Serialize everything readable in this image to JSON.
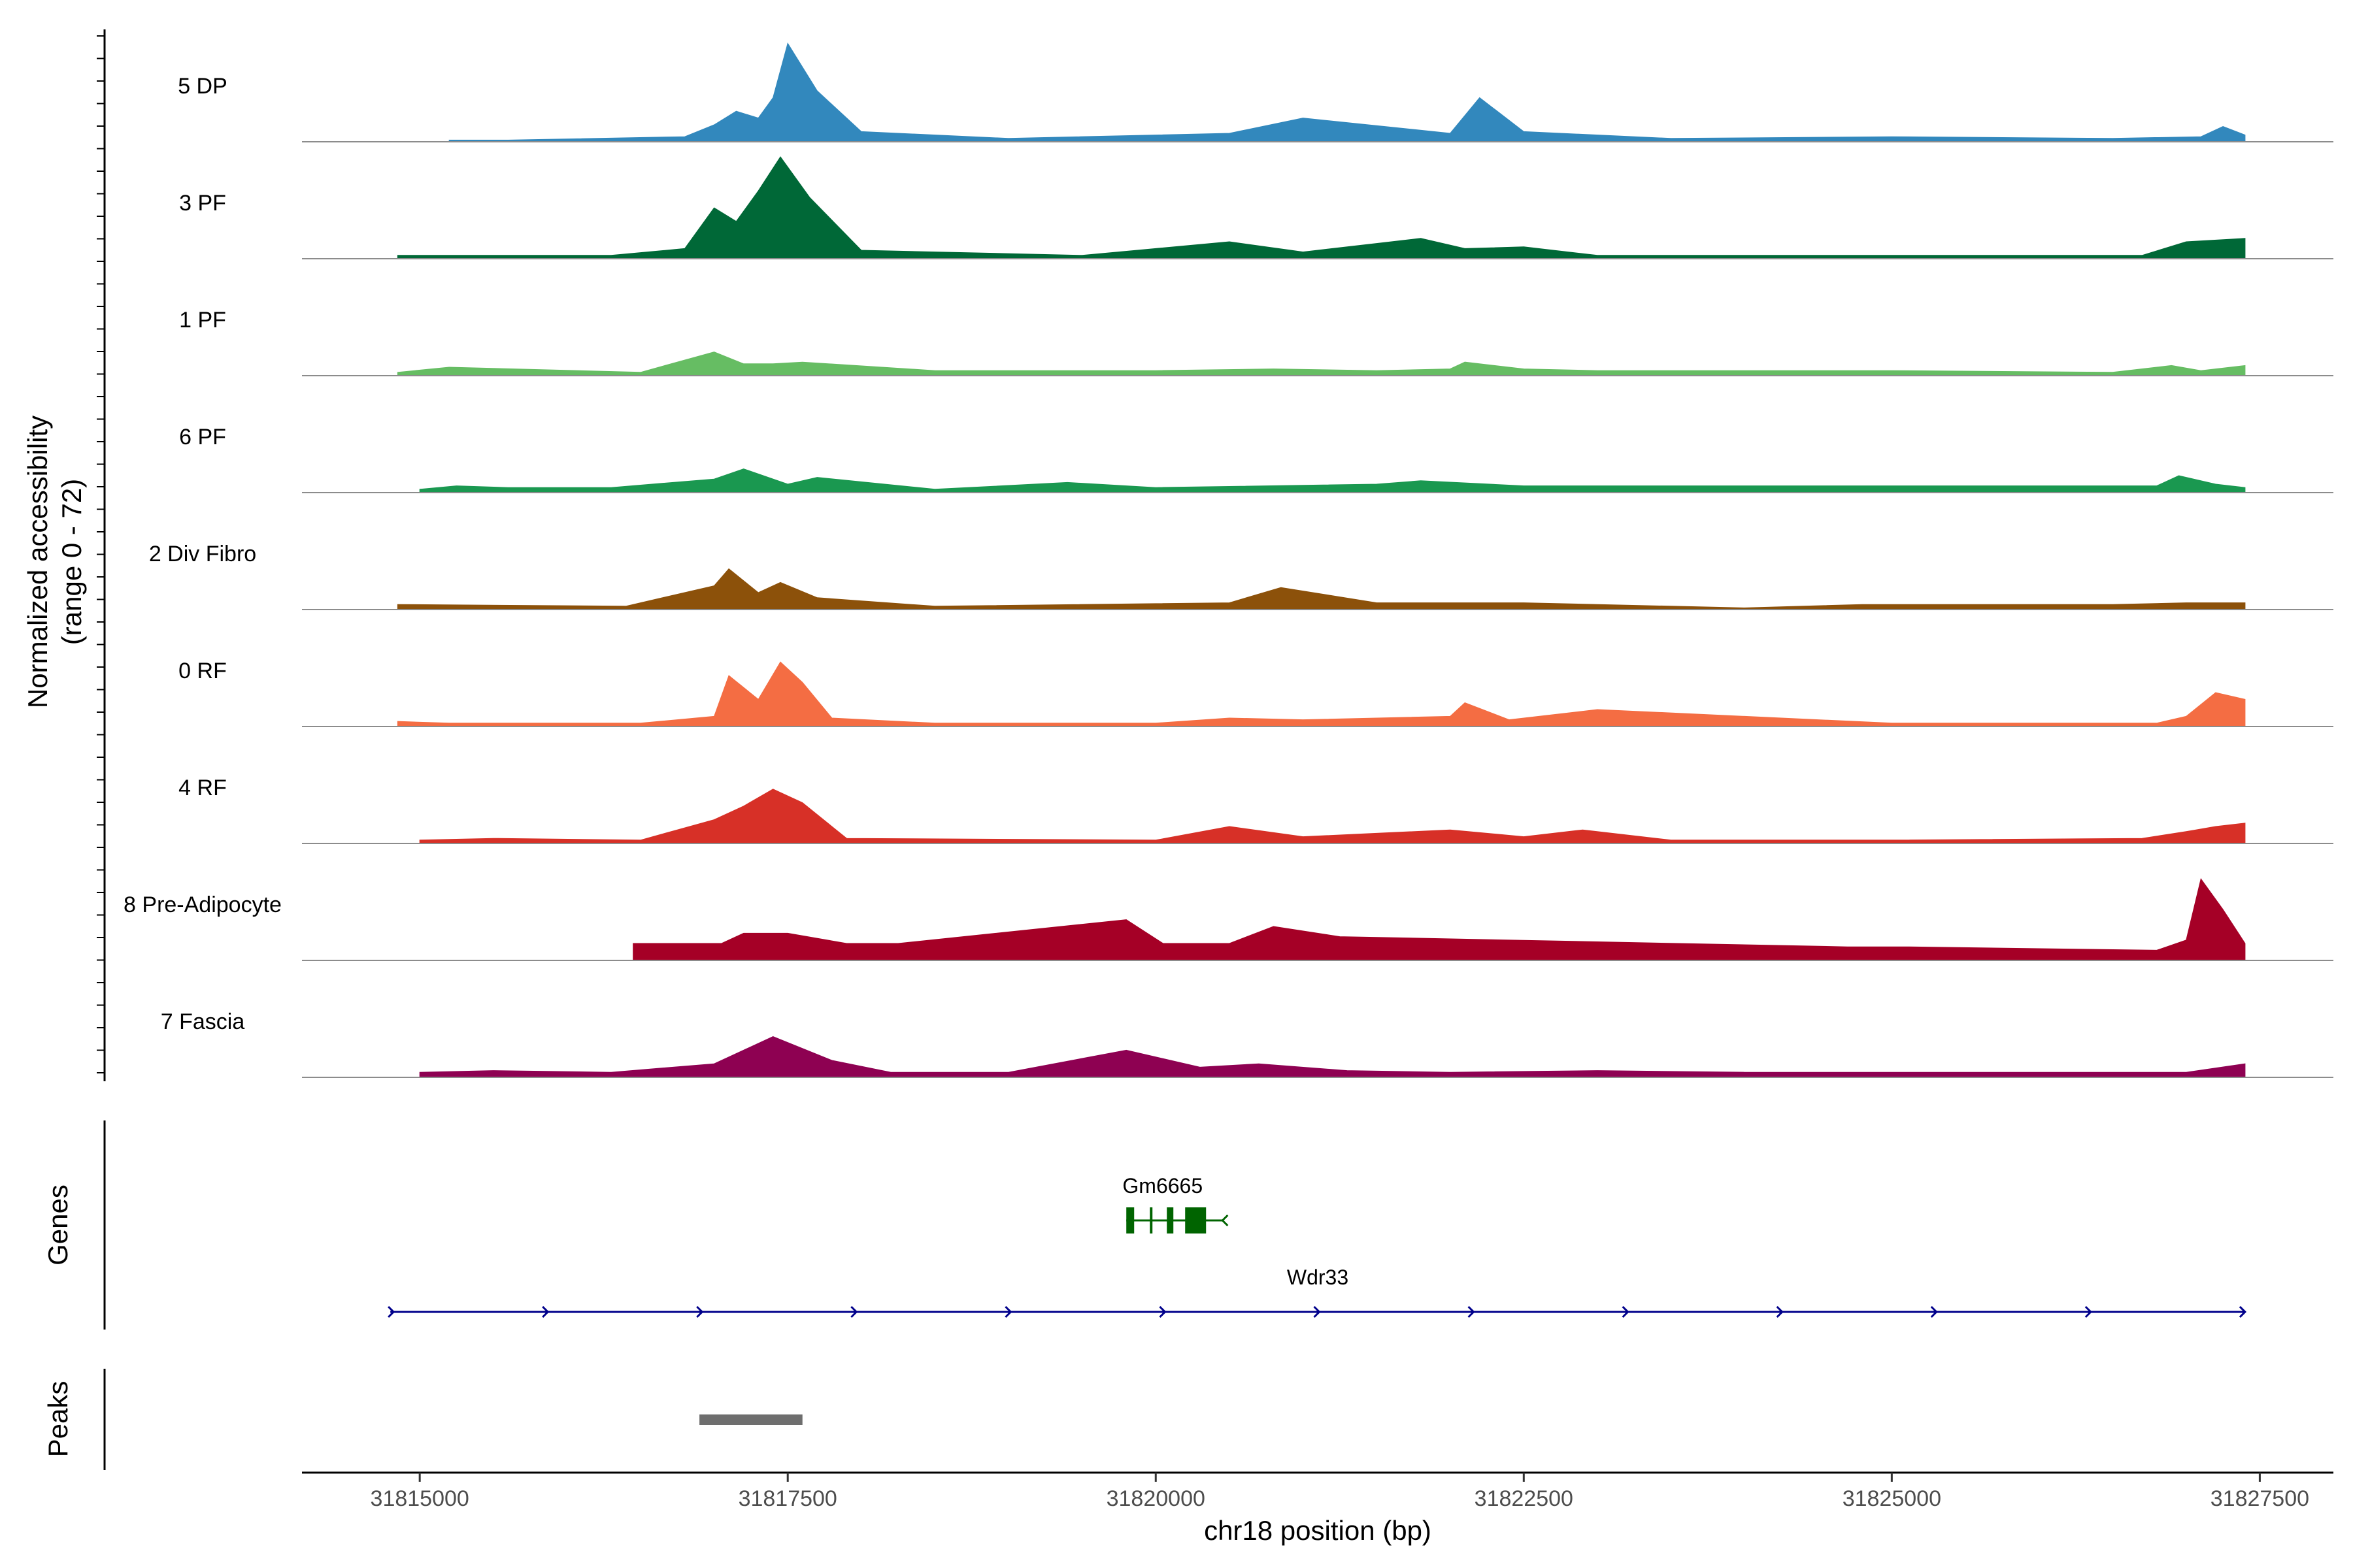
{
  "chart_data": {
    "type": "area",
    "title": "",
    "chromosome": "chr18",
    "xlabel": "chr18 position (bp)",
    "ylabel": "Normalized accessibility",
    "ylabel_range": "(range 0 - 72)",
    "xlim": [
      31814200,
      31828000
    ],
    "ylim": [
      0,
      72
    ],
    "x_ticks": [
      31815000,
      31817500,
      31820000,
      31822500,
      31825000,
      31827500
    ],
    "x_tick_labels": [
      "31815000",
      "31817500",
      "31820000",
      "31822500",
      "31825000",
      "31827500"
    ],
    "series": [
      {
        "name": "5 DP",
        "color": "#3288bd",
        "x": [
          31815200,
          31815600,
          31816800,
          31817000,
          31817150,
          31817300,
          31817400,
          31817500,
          31817700,
          31818000,
          31819000,
          31820500,
          31821000,
          31822000,
          31822200,
          31822500,
          31823500,
          31825000,
          31826500,
          31827100,
          31827250,
          31827400
        ],
        "values": [
          1,
          1,
          3,
          10,
          18,
          14,
          26,
          58,
          30,
          6,
          2,
          5,
          14,
          5,
          26,
          6,
          2,
          3,
          2,
          3,
          9,
          4
        ]
      },
      {
        "name": "3 PF",
        "color": "#006837",
        "x": [
          31814850,
          31815500,
          31816300,
          31816800,
          31817000,
          31817150,
          31817300,
          31817450,
          31817650,
          31818000,
          31819500,
          31820500,
          31821000,
          31821500,
          31821800,
          31822100,
          31822500,
          31823000,
          31824500,
          31826700,
          31827000,
          31827400
        ],
        "values": [
          2,
          2,
          2,
          6,
          30,
          22,
          40,
          60,
          36,
          5,
          2,
          10,
          4,
          9,
          12,
          6,
          7,
          2,
          2,
          2,
          10,
          12
        ]
      },
      {
        "name": "1 PF",
        "color": "#66bd63",
        "x": [
          31814850,
          31815200,
          31816500,
          31817000,
          31817200,
          31817400,
          31817600,
          31818500,
          31820000,
          31820800,
          31821500,
          31822000,
          31822100,
          31822500,
          31823000,
          31825000,
          31826500,
          31826900,
          31827100,
          31827400
        ],
        "values": [
          2,
          5,
          2,
          14,
          7,
          7,
          8,
          3,
          3,
          4,
          3,
          4,
          8,
          4,
          3,
          3,
          2,
          6,
          3,
          6
        ]
      },
      {
        "name": "6 PF",
        "color": "#1a9850",
        "x": [
          31815000,
          31815250,
          31815600,
          31816300,
          31817000,
          31817200,
          31817500,
          31817700,
          31818500,
          31819400,
          31820000,
          31821500,
          31821800,
          31822500,
          31823500,
          31824500,
          31825000,
          31826000,
          31826800,
          31826950,
          31827200,
          31827400
        ],
        "values": [
          2,
          4,
          3,
          3,
          8,
          14,
          5,
          9,
          2,
          6,
          3,
          5,
          7,
          4,
          4,
          4,
          4,
          4,
          4,
          10,
          5,
          3
        ]
      },
      {
        "name": "2 Div Fibro",
        "color": "#8c510a",
        "x": [
          31814850,
          31816400,
          31817000,
          31817100,
          31817300,
          31817450,
          31817700,
          31818500,
          31820500,
          31820850,
          31821500,
          31822500,
          31823500,
          31824000,
          31824800,
          31826500,
          31827000,
          31827400
        ],
        "values": [
          3,
          2,
          14,
          24,
          10,
          16,
          7,
          2,
          4,
          13,
          4,
          4,
          2,
          1,
          3,
          3,
          4,
          4
        ]
      },
      {
        "name": "0 RF",
        "color": "#f46d43",
        "x": [
          31814850,
          31815200,
          31816500,
          31817000,
          31817100,
          31817300,
          31817450,
          31817600,
          31817800,
          31818500,
          31820000,
          31820500,
          31821000,
          31822000,
          31822100,
          31822400,
          31823000,
          31825000,
          31826800,
          31827000,
          31827200,
          31827400
        ],
        "values": [
          3,
          2,
          2,
          6,
          30,
          16,
          38,
          26,
          5,
          2,
          2,
          5,
          4,
          6,
          14,
          4,
          10,
          2,
          2,
          6,
          20,
          16
        ]
      },
      {
        "name": "4 RF",
        "color": "#d73027",
        "x": [
          31815000,
          31815500,
          31816500,
          31817000,
          31817200,
          31817400,
          31817600,
          31817900,
          31820000,
          31820500,
          31821000,
          31821500,
          31822000,
          31822500,
          31822900,
          31823500,
          31825000,
          31826700,
          31827000,
          31827200,
          31827400
        ],
        "values": [
          2,
          3,
          2,
          14,
          22,
          32,
          24,
          3,
          2,
          10,
          4,
          6,
          8,
          4,
          8,
          2,
          2,
          3,
          7,
          10,
          12
        ]
      },
      {
        "name": "8 Pre-Adipocyte",
        "color": "#a50026",
        "x": [
          31816450,
          31817050,
          31817200,
          31817500,
          31817900,
          31818250,
          31819800,
          31820050,
          31820500,
          31820800,
          31821250,
          31824700,
          31825100,
          31826800,
          31827000,
          31827100,
          31827250,
          31827400
        ],
        "values": [
          10,
          10,
          16,
          16,
          10,
          10,
          24,
          10,
          10,
          20,
          14,
          8,
          8,
          6,
          12,
          48,
          30,
          10
        ]
      },
      {
        "name": "7 Fascia",
        "color": "#8e0152",
        "x": [
          31815000,
          31815500,
          31816300,
          31817000,
          31817400,
          31817800,
          31818200,
          31819000,
          31819800,
          31820300,
          31820700,
          31821300,
          31822000,
          31823000,
          31824000,
          31825000,
          31826500,
          31827000,
          31827400
        ],
        "values": [
          3,
          4,
          3,
          8,
          24,
          10,
          3,
          3,
          16,
          6,
          8,
          4,
          3,
          4,
          3,
          3,
          3,
          3,
          8
        ]
      }
    ]
  },
  "genes_track": {
    "label": "Genes",
    "genes": [
      {
        "name": "Gm6665",
        "strand": "-",
        "start": 31819800,
        "end": 31820400,
        "color": "#006400"
      },
      {
        "name": "Wdr33",
        "strand": "+",
        "start": 31814800,
        "end": 31827400,
        "color": "#00008b"
      }
    ]
  },
  "peaks_track": {
    "label": "Peaks",
    "peaks": [
      {
        "start": 31816900,
        "end": 31817600
      }
    ],
    "color": "#6e6e6e"
  }
}
